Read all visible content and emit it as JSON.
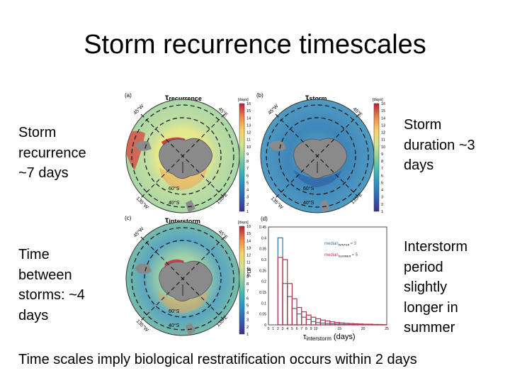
{
  "title": "Storm recurrence timescales",
  "left_text": {
    "top": "Storm recurrence ~7 days",
    "bottom": "Time between storms: ~4 days"
  },
  "right_text": {
    "top": "Storm duration ~3 days",
    "bottom": "Interstorm period slightly longer in summer"
  },
  "footer": "Time scales imply biological restratification occurs within 2 days",
  "figure": {
    "colorbar_unit": "[days]",
    "colorbar_ticks": [
      "1",
      "2",
      "3",
      "4",
      "5",
      "6",
      "7",
      "8",
      "9",
      "10",
      "11",
      "12",
      "13",
      "14",
      "15",
      "16"
    ],
    "panels": [
      {
        "letter": "(a)",
        "title": "τrecurrence",
        "title_base": "τ",
        "title_sub": "recurrence"
      },
      {
        "letter": "(b)",
        "title": "τstorm",
        "title_base": "τ",
        "title_sub": "storm"
      },
      {
        "letter": "(c)",
        "title": "τinterstorm",
        "title_base": "τ",
        "title_sub": "interstorm"
      },
      {
        "letter": "(d)",
        "title": "",
        "title_base": "",
        "title_sub": ""
      }
    ],
    "map_labels": {
      "nw": "45°W",
      "ne": "45°E",
      "sw": "135°W",
      "se": "135°E",
      "lat_inner": "60°S",
      "lat_outer": "40°S"
    },
    "colors": {
      "panel_a_ocean": "#c3dea0",
      "panel_b_ocean": "#3f86b9",
      "panel_c_ocean": "#83c2a8",
      "winter": "#3a6f9f",
      "summer": "#b8344a",
      "land": "#8a8a8a"
    }
  },
  "chart_data": {
    "type": "bar",
    "xlabel": "τinterstorm (days)",
    "xlabel_base": "τ",
    "xlabel_sub": "interstorm",
    "xlabel_unit": "(days)",
    "ylabel": "PDF",
    "xlim": [
      0,
      25
    ],
    "ylim": [
      0,
      0.45
    ],
    "x_ticks": [
      "0",
      "1",
      "2",
      "3",
      "4",
      "5",
      "6",
      "7",
      "8",
      "9",
      "10",
      "15",
      "20",
      "25"
    ],
    "x_tick_values": [
      0,
      1,
      2,
      3,
      4,
      5,
      6,
      7,
      8,
      9,
      10,
      15,
      20,
      25
    ],
    "y_ticks": [
      "0",
      "0.05",
      "0.1",
      "0.15",
      "0.2",
      "0.25",
      "0.3",
      "0.35",
      "0.4",
      "0.45"
    ],
    "y_tick_values": [
      0,
      0.05,
      0.1,
      0.15,
      0.2,
      0.25,
      0.3,
      0.35,
      0.4,
      0.45
    ],
    "bin_edges": [
      2,
      3,
      4,
      5,
      6,
      7,
      8,
      9,
      10,
      11,
      12,
      13,
      14,
      15,
      16,
      17,
      18,
      19,
      20,
      21,
      22,
      23,
      24,
      25
    ],
    "series": [
      {
        "name": "median WINTER = 3",
        "median_label": "median",
        "season": "WINTER",
        "value_text": "= 3",
        "color": "#3a6f9f",
        "values": [
          0.4,
          0.19,
          0.13,
          0.075,
          0.05,
          0.035,
          0.025,
          0.015,
          0.01,
          0.008,
          0.006,
          0.005,
          0.004,
          0.003,
          0.002,
          0.002,
          0.001,
          0.001,
          0.001,
          0.001,
          0.0005,
          0.0005,
          0.0005
        ]
      },
      {
        "name": "median SUMMER = 5",
        "median_label": "median",
        "season": "SUMMER",
        "value_text": "= 5",
        "color": "#b8344a",
        "values": [
          0.31,
          0.3,
          0.19,
          0.12,
          0.08,
          0.06,
          0.045,
          0.035,
          0.028,
          0.022,
          0.018,
          0.014,
          0.011,
          0.009,
          0.007,
          0.006,
          0.005,
          0.004,
          0.003,
          0.003,
          0.002,
          0.002,
          0.001
        ]
      }
    ]
  }
}
